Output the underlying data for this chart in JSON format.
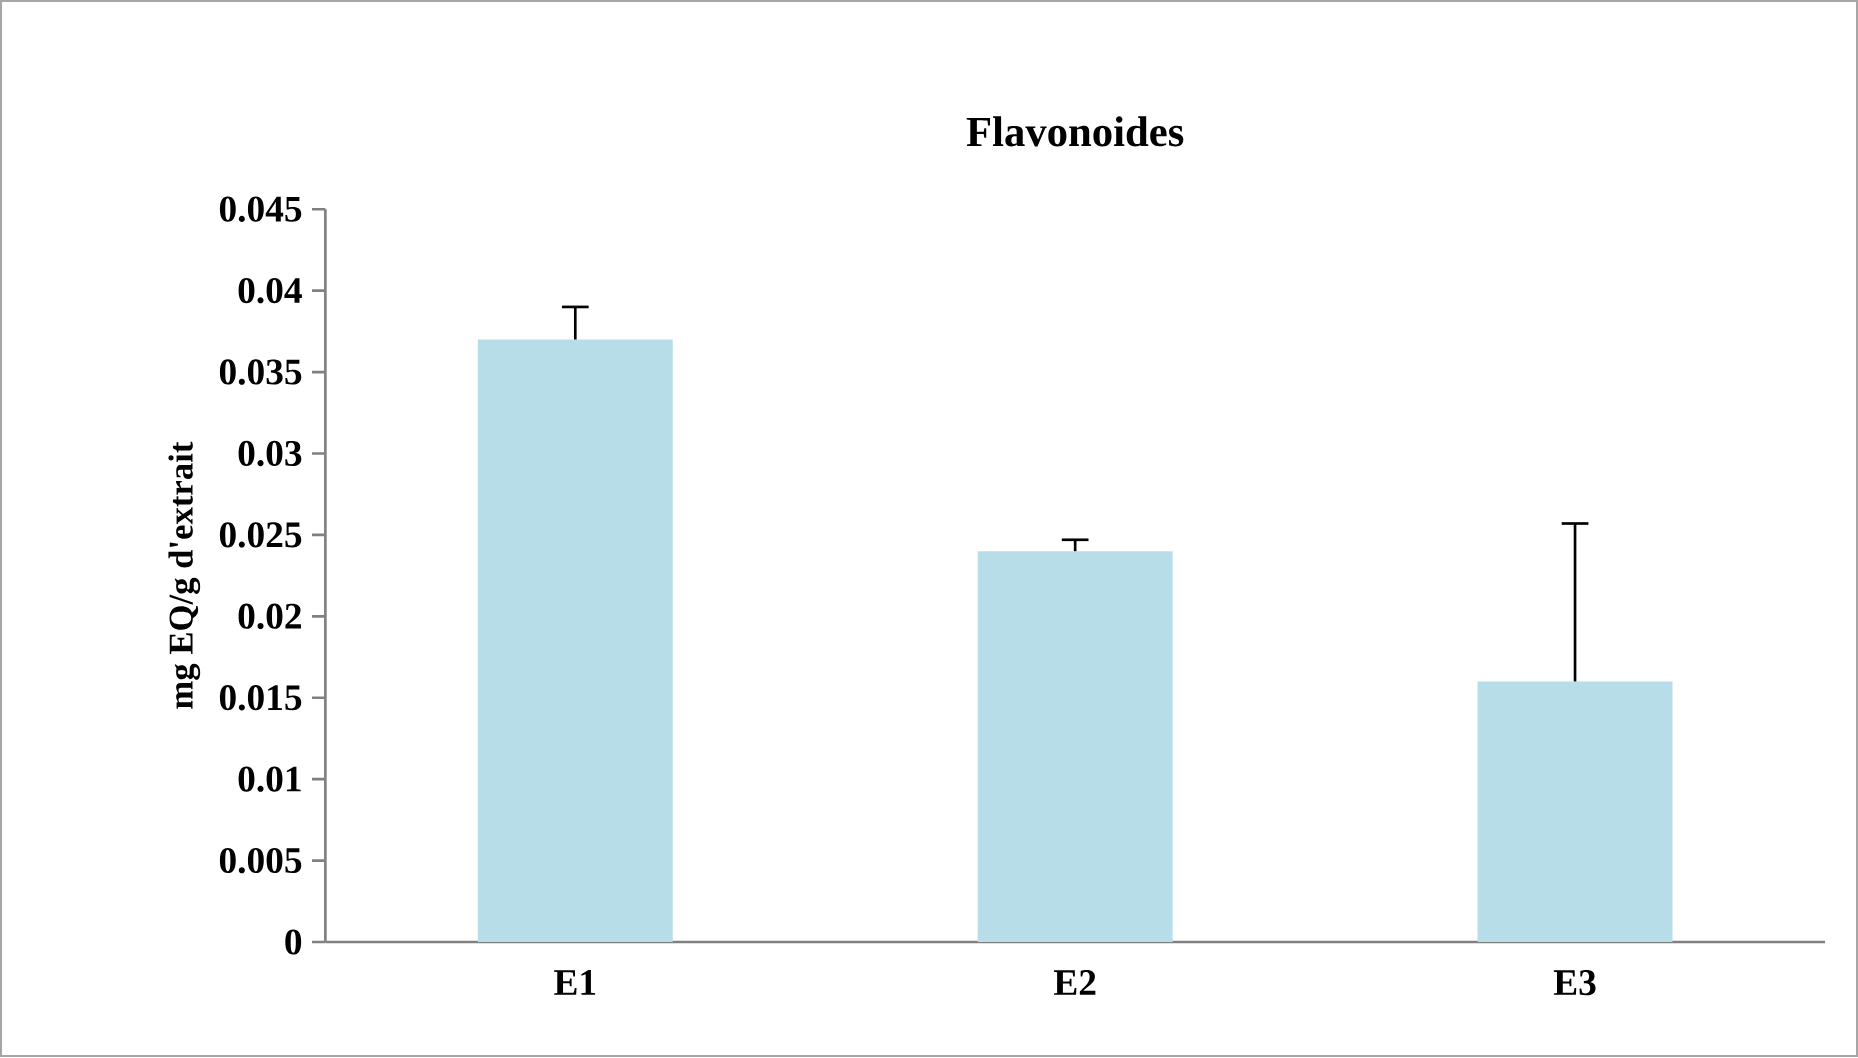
{
  "chart_data": {
    "type": "bar",
    "title": "Flavonoides",
    "ylabel": "mg EQ/g d'extrait",
    "categories": [
      "E1",
      "E2",
      "E3"
    ],
    "values": [
      0.037,
      0.024,
      0.016
    ],
    "errors": [
      [
        0.037,
        0.039
      ],
      [
        0.024,
        0.0247
      ],
      [
        0.016,
        0.0257
      ]
    ],
    "color": "#b7dde8",
    "ylim": [
      0,
      0.045
    ],
    "yticks": [
      0,
      0.005,
      0.01,
      0.015,
      0.02,
      0.025,
      0.03,
      0.035,
      0.04,
      0.045
    ],
    "grid": false
  }
}
